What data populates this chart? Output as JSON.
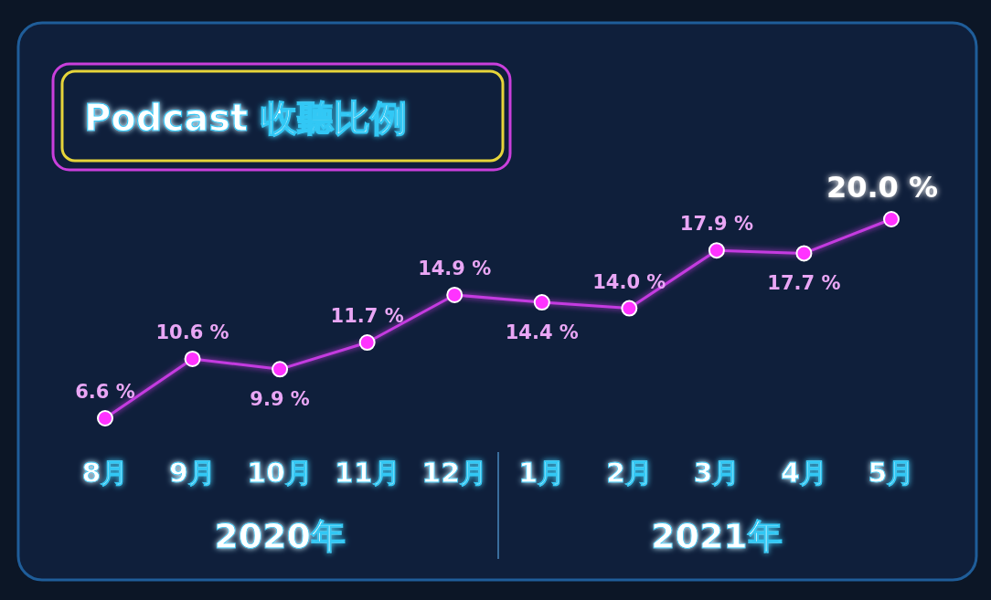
{
  "chart_data": {
    "type": "line",
    "title": "Podcast 收聽比例",
    "categories": [
      "8月",
      "9月",
      "10月",
      "11月",
      "12月",
      "1月",
      "2月",
      "3月",
      "4月",
      "5月"
    ],
    "series": [
      {
        "color": "#c43be0",
        "values": [
          6.6,
          10.6,
          9.9,
          11.7,
          14.9,
          14.4,
          14.0,
          17.9,
          17.7,
          20.0
        ],
        "value_labels": [
          "6.6 %",
          "10.6 %",
          "9.9 %",
          "11.7 %",
          "14.9 %",
          "14.4 %",
          "14.0 %",
          "17.9 %",
          "17.7 %",
          "20.0 %"
        ]
      }
    ],
    "marker": "circle",
    "grid": false,
    "tick_labels": "x",
    "annotations": [
      "2020年",
      "2021年"
    ]
  }
}
